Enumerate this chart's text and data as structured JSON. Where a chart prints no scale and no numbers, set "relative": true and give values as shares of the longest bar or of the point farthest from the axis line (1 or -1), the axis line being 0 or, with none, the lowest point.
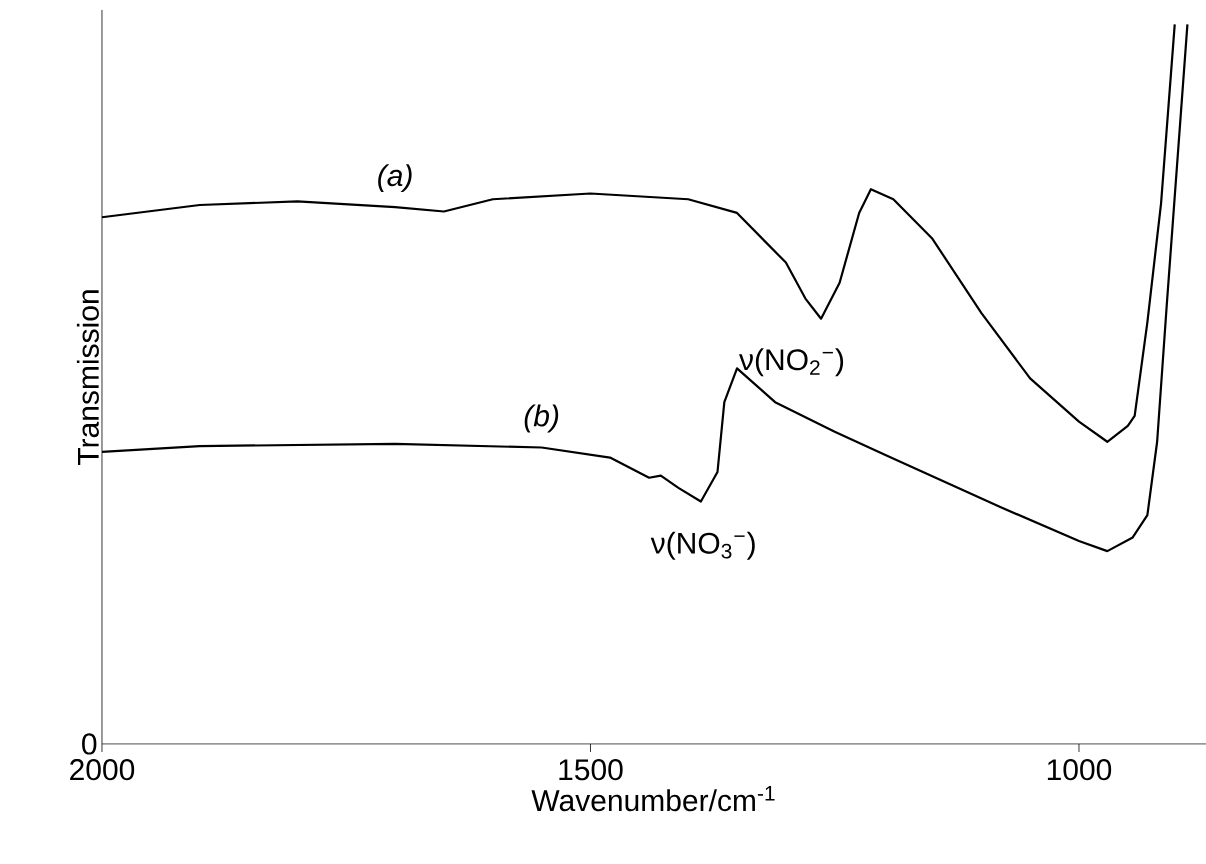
{
  "chart_data": {
    "type": "line",
    "relative": true,
    "xlabel": "Wavenumber/cm$^{-1}$",
    "ylabel": "Transmission",
    "xlim": [
      2000,
      870
    ],
    "xticks": [
      2000,
      1500,
      1000
    ],
    "grid": false,
    "legend": false,
    "marker": "none",
    "line_style": "solid",
    "series": [
      {
        "name": "(a)",
        "color": "#000000",
        "x": [
          2000,
          1900,
          1800,
          1700,
          1650,
          1600,
          1500,
          1400,
          1350,
          1300,
          1280,
          1264,
          1245,
          1225,
          1213,
          1190,
          1150,
          1100,
          1050,
          1000,
          971,
          950,
          943,
          930,
          916,
          902
        ],
        "values": [
          0.732,
          0.749,
          0.754,
          0.746,
          0.74,
          0.757,
          0.765,
          0.757,
          0.738,
          0.669,
          0.619,
          0.591,
          0.641,
          0.738,
          0.771,
          0.757,
          0.702,
          0.599,
          0.508,
          0.448,
          0.42,
          0.442,
          0.456,
          0.586,
          0.751,
          1.0
        ]
      },
      {
        "name": "(b)",
        "color": "#000000",
        "x": [
          2000,
          1900,
          1700,
          1550,
          1480,
          1440,
          1428,
          1410,
          1387,
          1370,
          1363,
          1350,
          1311,
          1250,
          1197,
          1080,
          1000,
          971,
          945,
          930,
          920,
          910,
          889
        ],
        "values": [
          0.406,
          0.414,
          0.417,
          0.412,
          0.398,
          0.37,
          0.373,
          0.356,
          0.337,
          0.378,
          0.475,
          0.522,
          0.475,
          0.434,
          0.401,
          0.329,
          0.282,
          0.268,
          0.287,
          0.318,
          0.42,
          0.613,
          1.0
        ]
      }
    ],
    "annotations": [
      "ν(NO$_{2}$$^{−}$)",
      "ν(NO$_{3}$$^{−}$)",
      "0"
    ]
  }
}
